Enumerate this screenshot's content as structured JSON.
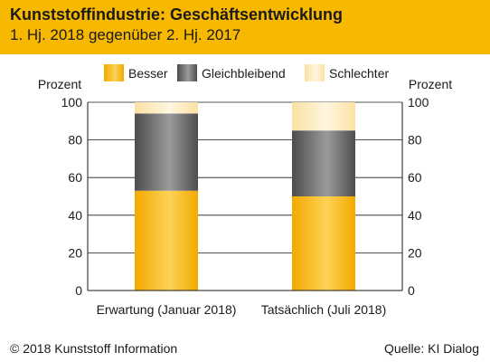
{
  "header": {
    "title": "Kunststoffindustrie: Geschäftsentwicklung",
    "subtitle": "1. Hj. 2018 gegenüber 2. Hj. 2017"
  },
  "footer": {
    "copyright": "© 2018 Kunststoff Information",
    "source": "Quelle: KI Dialog"
  },
  "chart_data": {
    "type": "bar",
    "stacked": true,
    "categories": [
      "Erwartung (Januar 2018)",
      "Tatsächlich (Juli 2018)"
    ],
    "series": [
      {
        "name": "Besser",
        "values": [
          53,
          50
        ],
        "color": "#f7b800"
      },
      {
        "name": "Gleichbleibend",
        "values": [
          41,
          35
        ],
        "color": "#6e6e6e"
      },
      {
        "name": "Schlechter",
        "values": [
          6,
          15
        ],
        "color": "#fdebc0"
      }
    ],
    "ylabel_left": "Prozent",
    "ylabel_right": "Prozent",
    "ylim": [
      0,
      100
    ],
    "yticks": [
      0,
      20,
      40,
      60,
      80,
      100
    ],
    "grid": true,
    "legend_position": "top"
  }
}
